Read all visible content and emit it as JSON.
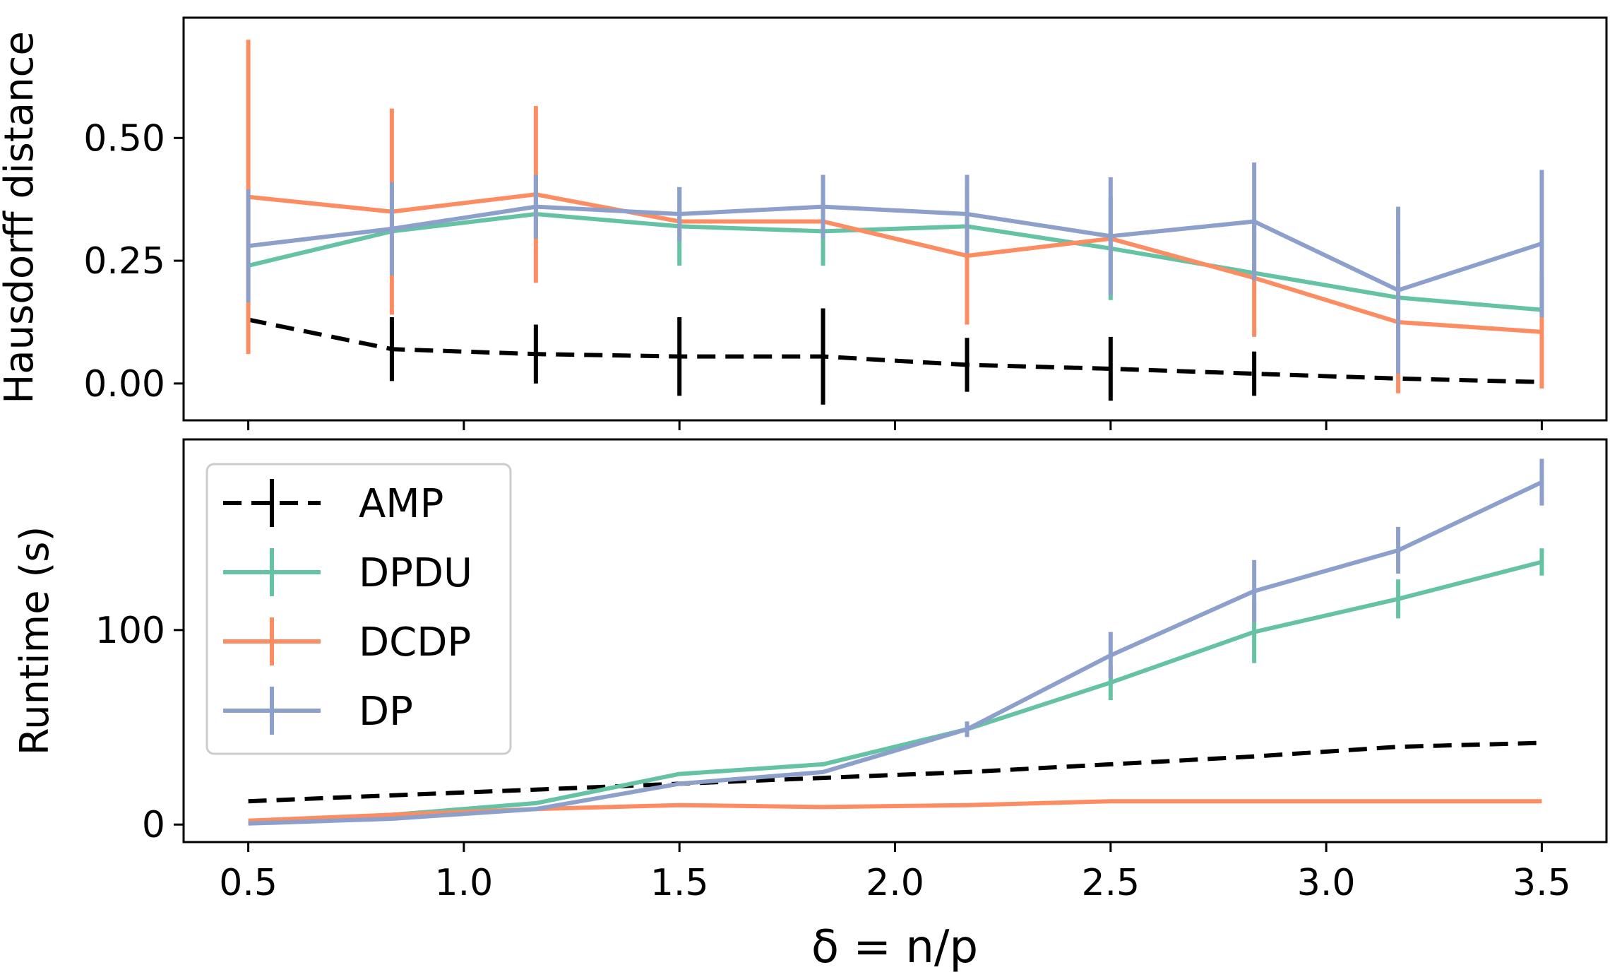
{
  "chart_data": [
    {
      "type": "line",
      "ylabel": "Hausdorff distance",
      "xlabel": "",
      "xlim": [
        0.35,
        3.65
      ],
      "ylim": [
        -0.075,
        0.745
      ],
      "x_ticks": [
        0.5,
        1.0,
        1.5,
        2.0,
        2.5,
        3.0,
        3.5
      ],
      "y_ticks": [
        0.0,
        0.25,
        0.5
      ],
      "y_tick_labels": [
        "0.00",
        "0.25",
        "0.50"
      ],
      "show_x_tick_labels": false,
      "grid": false,
      "x": [
        0.5,
        0.833,
        1.167,
        1.5,
        1.833,
        2.167,
        2.5,
        2.833,
        3.167,
        3.5
      ],
      "series": [
        {
          "name": "AMP",
          "color": "#000000",
          "dash": true,
          "values": [
            0.13,
            0.07,
            0.06,
            0.055,
            0.055,
            0.038,
            0.03,
            0.02,
            0.01,
            0.003
          ],
          "errors": [
            0.0,
            0.065,
            0.06,
            0.08,
            0.098,
            0.055,
            0.065,
            0.045,
            0.0,
            0.0
          ]
        },
        {
          "name": "DPDU",
          "color": "#66c2a5",
          "dash": false,
          "values": [
            0.24,
            0.31,
            0.345,
            0.32,
            0.31,
            0.32,
            0.275,
            0.225,
            0.175,
            0.15
          ],
          "errors": [
            0.0,
            0.0,
            0.0,
            0.08,
            0.07,
            0.0,
            0.105,
            0.0,
            0.0,
            0.0
          ]
        },
        {
          "name": "DCDP",
          "color": "#fc8d62",
          "dash": false,
          "values": [
            0.38,
            0.35,
            0.385,
            0.33,
            0.33,
            0.26,
            0.295,
            0.215,
            0.125,
            0.105
          ],
          "errors": [
            0.32,
            0.21,
            0.18,
            0.0,
            0.0,
            0.14,
            0.0,
            0.12,
            0.145,
            0.115
          ]
        },
        {
          "name": "DP",
          "color": "#8da0cb",
          "dash": false,
          "values": [
            0.28,
            0.315,
            0.36,
            0.345,
            0.36,
            0.345,
            0.3,
            0.33,
            0.19,
            0.285
          ],
          "errors": [
            0.115,
            0.095,
            0.065,
            0.055,
            0.065,
            0.08,
            0.12,
            0.12,
            0.17,
            0.15
          ]
        }
      ]
    },
    {
      "type": "line",
      "ylabel": "Runtime (s)",
      "xlabel": "δ = n/p",
      "xlim": [
        0.35,
        3.65
      ],
      "ylim": [
        -9,
        198
      ],
      "x_ticks": [
        0.5,
        1.0,
        1.5,
        2.0,
        2.5,
        3.0,
        3.5
      ],
      "x_tick_labels": [
        "0.5",
        "1.0",
        "1.5",
        "2.0",
        "2.5",
        "3.0",
        "3.5"
      ],
      "y_ticks": [
        0,
        100
      ],
      "y_tick_labels": [
        "0",
        "100"
      ],
      "grid": false,
      "legend": {
        "placement": "top-left",
        "entries": [
          "AMP",
          "DPDU",
          "DCDP",
          "DP"
        ]
      },
      "x": [
        0.5,
        0.833,
        1.167,
        1.5,
        1.833,
        2.167,
        2.5,
        2.833,
        3.167,
        3.5
      ],
      "series": [
        {
          "name": "AMP",
          "color": "#000000",
          "dash": true,
          "values": [
            12,
            15,
            18,
            21,
            24,
            27,
            31,
            35,
            40,
            42
          ],
          "errors": [
            0,
            0,
            0,
            0,
            0,
            0,
            0,
            0,
            0,
            0
          ]
        },
        {
          "name": "DPDU",
          "color": "#66c2a5",
          "dash": false,
          "values": [
            1,
            5,
            11,
            26,
            31,
            49,
            73,
            99,
            116,
            135
          ],
          "errors": [
            0,
            0,
            0,
            0,
            0,
            0,
            9,
            16,
            10,
            7
          ]
        },
        {
          "name": "DCDP",
          "color": "#fc8d62",
          "dash": false,
          "values": [
            2,
            5,
            8,
            10,
            9,
            10,
            12,
            12,
            12,
            12
          ],
          "errors": [
            0,
            0,
            0,
            0,
            0,
            0,
            0,
            0,
            0,
            0
          ]
        },
        {
          "name": "DP",
          "color": "#8da0cb",
          "dash": false,
          "values": [
            0.5,
            3,
            8,
            21,
            27,
            49,
            87,
            120,
            141,
            176
          ],
          "errors": [
            0,
            0,
            0,
            0,
            0,
            4,
            12,
            16,
            12,
            12
          ]
        }
      ]
    }
  ]
}
